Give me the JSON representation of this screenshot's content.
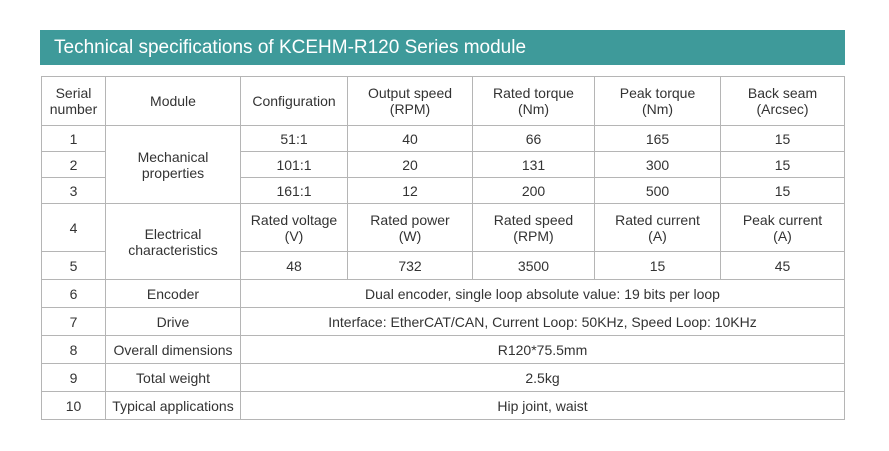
{
  "title": "Technical specifications of KCEHM-R120 Series module",
  "header": {
    "serial": "Serial\nnumber",
    "module": "Module",
    "configuration": "Configuration",
    "output_speed": "Output speed\n(RPM)",
    "rated_torque": "Rated torque\n(Nm)",
    "peak_torque": "Peak torque\n(Nm)",
    "back_seam": "Back seam\n(Arcsec)"
  },
  "mechanical": {
    "label": "Mechanical\nproperties",
    "rows": [
      {
        "serial": "1",
        "configuration": "51:1",
        "output_speed": "40",
        "rated_torque": "66",
        "peak_torque": "165",
        "back_seam": "15"
      },
      {
        "serial": "2",
        "configuration": "101:1",
        "output_speed": "20",
        "rated_torque": "131",
        "peak_torque": "300",
        "back_seam": "15"
      },
      {
        "serial": "3",
        "configuration": "161:1",
        "output_speed": "12",
        "rated_torque": "200",
        "peak_torque": "500",
        "back_seam": "15"
      }
    ]
  },
  "electrical": {
    "label": "Electrical\ncharacteristics",
    "header": {
      "serial": "4",
      "rated_voltage": "Rated voltage\n(V)",
      "rated_power": "Rated power\n(W)",
      "rated_speed": "Rated speed\n(RPM)",
      "rated_current": "Rated current\n(A)",
      "peak_current": "Peak current\n(A)"
    },
    "values": {
      "serial": "5",
      "rated_voltage": "48",
      "rated_power": "732",
      "rated_speed": "3500",
      "rated_current": "15",
      "peak_current": "45"
    }
  },
  "other_rows": [
    {
      "serial": "6",
      "label": "Encoder",
      "value": "Dual encoder, single loop absolute value: 19 bits per loop"
    },
    {
      "serial": "7",
      "label": "Drive",
      "value": "Interface: EtherCAT/CAN, Current Loop: 50KHz, Speed Loop: 10KHz"
    },
    {
      "serial": "8",
      "label": "Overall dimensions",
      "value": "R120*75.5mm"
    },
    {
      "serial": "9",
      "label": "Total weight",
      "value": "2.5kg"
    },
    {
      "serial": "10",
      "label": "Typical applications",
      "value": "Hip joint, waist"
    }
  ]
}
